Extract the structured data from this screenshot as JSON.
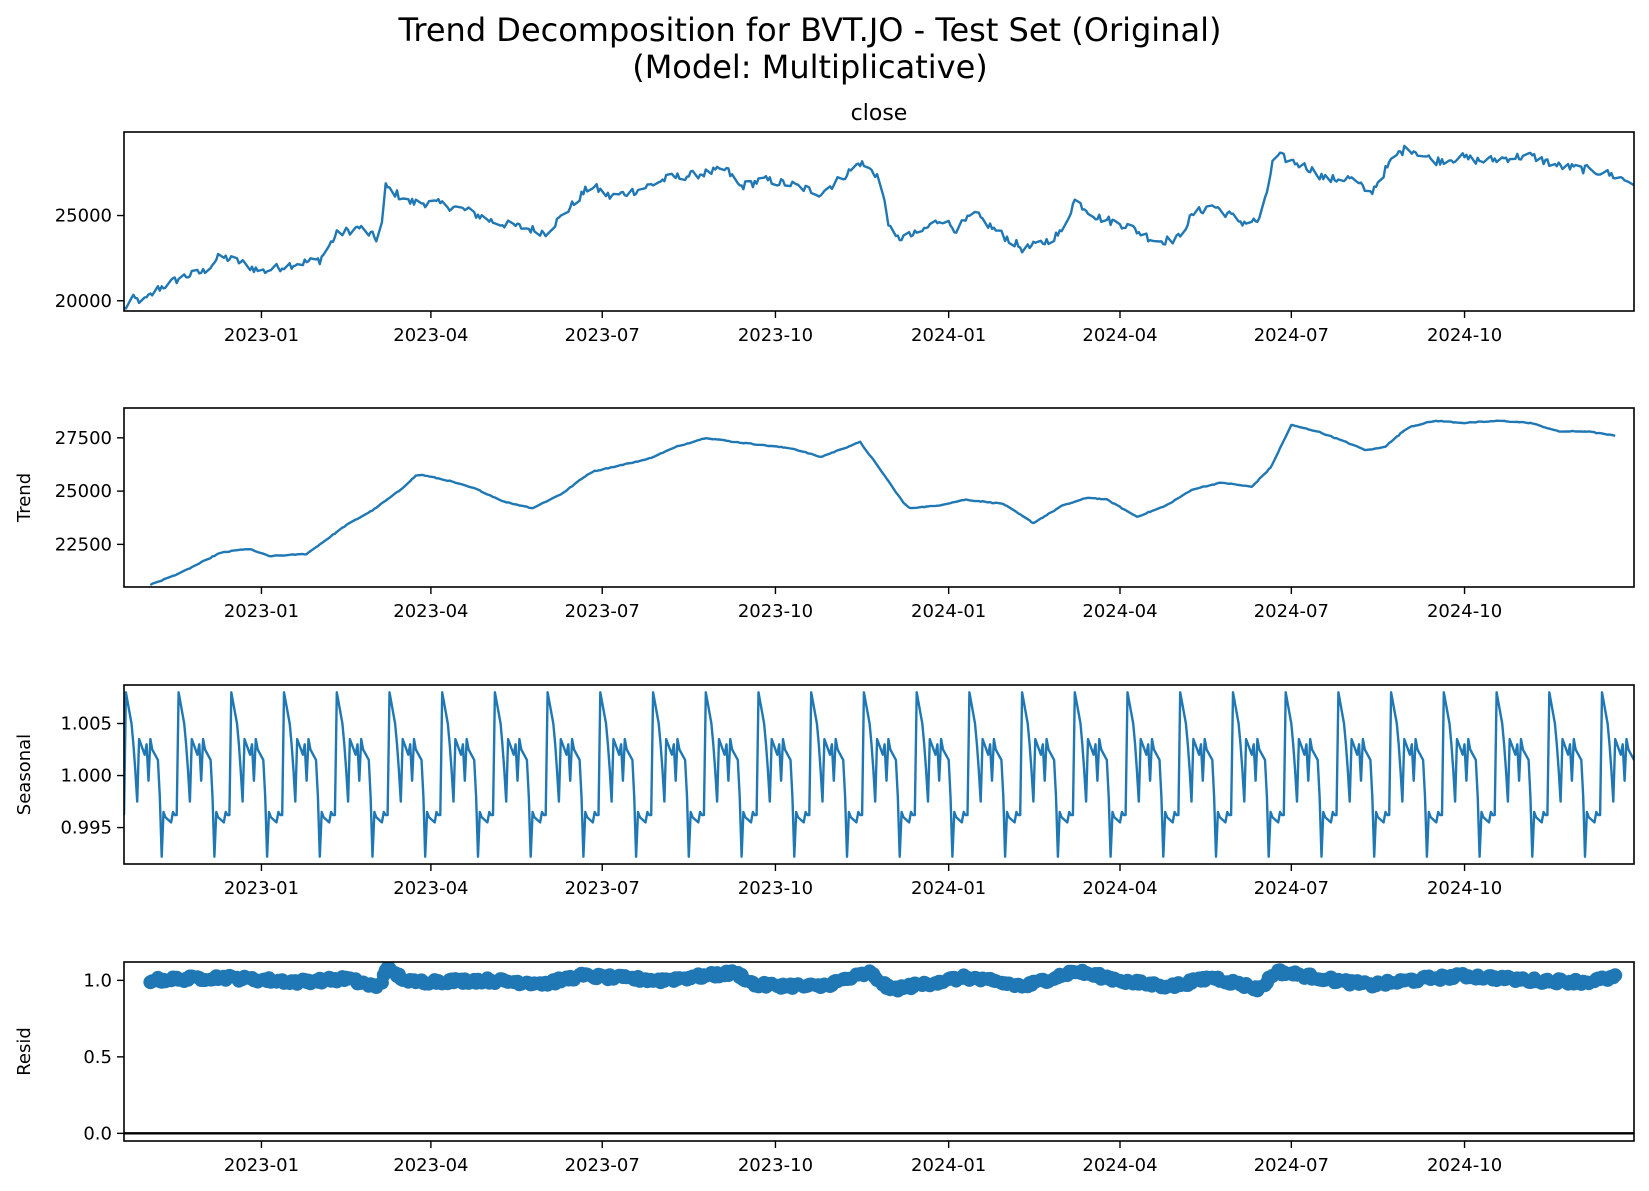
{
  "figure": {
    "title_line1": "Trend Decomposition for BVT.JO - Test Set (Original)",
    "title_line2": "(Model: Multiplicative)"
  },
  "colors": {
    "series": "#1f77b4",
    "axes": "#000000",
    "zero_line": "#000000"
  },
  "chart_data": [
    {
      "type": "line",
      "title": "close",
      "ylabel": "",
      "xlim": [
        "2022-10-20",
        "2024-12-30"
      ],
      "ylim": [
        19400,
        29900
      ],
      "yticks": [
        20000,
        25000
      ],
      "xticks": [
        "2023-01",
        "2023-04",
        "2023-07",
        "2023-10",
        "2024-01",
        "2024-04",
        "2024-07",
        "2024-10"
      ],
      "start_date": "2022-10-20",
      "end_date": "2024-12-30",
      "keypoints": [
        [
          "2022-10-20",
          19500
        ],
        [
          "2022-10-24",
          20100
        ],
        [
          "2022-10-31",
          20000
        ],
        [
          "2022-11-07",
          20700
        ],
        [
          "2022-11-20",
          21400
        ],
        [
          "2022-12-01",
          21700
        ],
        [
          "2022-12-10",
          22600
        ],
        [
          "2022-12-20",
          22300
        ],
        [
          "2023-01-01",
          21700
        ],
        [
          "2023-01-15",
          22100
        ],
        [
          "2023-02-01",
          22400
        ],
        [
          "2023-02-10",
          23900
        ],
        [
          "2023-02-22",
          24300
        ],
        [
          "2023-03-01",
          23800
        ],
        [
          "2023-03-05",
          23500
        ],
        [
          "2023-03-08",
          26700
        ],
        [
          "2023-03-20",
          25800
        ],
        [
          "2023-04-05",
          25700
        ],
        [
          "2023-04-20",
          25300
        ],
        [
          "2023-05-05",
          24600
        ],
        [
          "2023-05-20",
          24300
        ],
        [
          "2023-06-01",
          24000
        ],
        [
          "2023-06-10",
          25000
        ],
        [
          "2023-06-25",
          26800
        ],
        [
          "2023-07-05",
          26100
        ],
        [
          "2023-07-20",
          26500
        ],
        [
          "2023-08-05",
          27200
        ],
        [
          "2023-08-20",
          27400
        ],
        [
          "2023-09-05",
          27700
        ],
        [
          "2023-09-12",
          26700
        ],
        [
          "2023-09-25",
          27100
        ],
        [
          "2023-10-10",
          26800
        ],
        [
          "2023-10-25",
          26300
        ],
        [
          "2023-11-05",
          27200
        ],
        [
          "2023-11-15",
          28100
        ],
        [
          "2023-11-25",
          27300
        ],
        [
          "2023-12-02",
          23600
        ],
        [
          "2023-12-15",
          23900
        ],
        [
          "2023-12-28",
          24800
        ],
        [
          "2024-01-05",
          24200
        ],
        [
          "2024-01-15",
          25100
        ],
        [
          "2024-01-25",
          24200
        ],
        [
          "2024-02-10",
          23000
        ],
        [
          "2024-02-22",
          23500
        ],
        [
          "2024-03-01",
          24000
        ],
        [
          "2024-03-08",
          25900
        ],
        [
          "2024-03-20",
          24900
        ],
        [
          "2024-04-05",
          24400
        ],
        [
          "2024-04-20",
          23500
        ],
        [
          "2024-05-01",
          23600
        ],
        [
          "2024-05-10",
          25100
        ],
        [
          "2024-05-20",
          25600
        ],
        [
          "2024-06-05",
          24600
        ],
        [
          "2024-06-15",
          24700
        ],
        [
          "2024-06-22",
          28600
        ],
        [
          "2024-07-10",
          27800
        ],
        [
          "2024-07-20",
          27100
        ],
        [
          "2024-08-01",
          27200
        ],
        [
          "2024-08-12",
          26300
        ],
        [
          "2024-08-25",
          28500
        ],
        [
          "2024-09-01",
          29000
        ],
        [
          "2024-09-15",
          28200
        ],
        [
          "2024-09-30",
          28400
        ],
        [
          "2024-10-10",
          28200
        ],
        [
          "2024-10-25",
          28400
        ],
        [
          "2024-11-05",
          28500
        ],
        [
          "2024-11-20",
          27900
        ],
        [
          "2024-12-05",
          27700
        ],
        [
          "2024-12-15",
          27500
        ],
        [
          "2024-12-30",
          26900
        ]
      ]
    },
    {
      "type": "line",
      "title": "",
      "ylabel": "Trend",
      "xlim": [
        "2022-10-20",
        "2024-12-30"
      ],
      "ylim": [
        20500,
        28900
      ],
      "yticks": [
        22500,
        25000,
        27500
      ],
      "xticks": [
        "2023-01",
        "2023-04",
        "2023-07",
        "2023-10",
        "2024-01",
        "2024-04",
        "2024-07",
        "2024-10"
      ],
      "keypoints": [
        [
          "2022-11-03",
          20600
        ],
        [
          "2022-11-20",
          21200
        ],
        [
          "2022-12-10",
          22100
        ],
        [
          "2022-12-25",
          22300
        ],
        [
          "2023-01-05",
          21950
        ],
        [
          "2023-01-25",
          22050
        ],
        [
          "2023-02-15",
          23400
        ],
        [
          "2023-03-01",
          24100
        ],
        [
          "2023-03-15",
          25000
        ],
        [
          "2023-03-25",
          25800
        ],
        [
          "2023-04-10",
          25500
        ],
        [
          "2023-04-25",
          25100
        ],
        [
          "2023-05-10",
          24500
        ],
        [
          "2023-05-25",
          24200
        ],
        [
          "2023-06-10",
          24900
        ],
        [
          "2023-06-25",
          25900
        ],
        [
          "2023-07-10",
          26200
        ],
        [
          "2023-07-25",
          26500
        ],
        [
          "2023-08-10",
          27100
        ],
        [
          "2023-08-25",
          27500
        ],
        [
          "2023-09-10",
          27300
        ],
        [
          "2023-09-25",
          27150
        ],
        [
          "2023-10-10",
          27000
        ],
        [
          "2023-10-25",
          26600
        ],
        [
          "2023-11-15",
          27300
        ],
        [
          "2023-11-25",
          26100
        ],
        [
          "2023-12-10",
          24200
        ],
        [
          "2023-12-25",
          24300
        ],
        [
          "2024-01-10",
          24600
        ],
        [
          "2024-01-30",
          24400
        ],
        [
          "2024-02-15",
          23500
        ],
        [
          "2024-03-01",
          24300
        ],
        [
          "2024-03-15",
          24700
        ],
        [
          "2024-03-25",
          24600
        ],
        [
          "2024-04-10",
          23800
        ],
        [
          "2024-04-25",
          24300
        ],
        [
          "2024-05-10",
          25100
        ],
        [
          "2024-05-25",
          25400
        ],
        [
          "2024-06-10",
          25200
        ],
        [
          "2024-06-20",
          26100
        ],
        [
          "2024-07-01",
          28100
        ],
        [
          "2024-07-15",
          27800
        ],
        [
          "2024-07-30",
          27300
        ],
        [
          "2024-08-10",
          26900
        ],
        [
          "2024-08-20",
          27100
        ],
        [
          "2024-09-01",
          28000
        ],
        [
          "2024-09-15",
          28300
        ],
        [
          "2024-10-01",
          28200
        ],
        [
          "2024-10-20",
          28300
        ],
        [
          "2024-11-05",
          28200
        ],
        [
          "2024-11-20",
          27800
        ],
        [
          "2024-12-05",
          27800
        ],
        [
          "2024-12-20",
          27600
        ]
      ]
    },
    {
      "type": "line",
      "title": "",
      "ylabel": "Seasonal",
      "xlim": [
        "2022-10-20",
        "2024-12-30"
      ],
      "ylim": [
        0.9915,
        1.0087
      ],
      "yticks": [
        0.995,
        1.0,
        1.005
      ],
      "ytick_labels": [
        "0.995",
        "1.000",
        "1.005"
      ],
      "xticks": [
        "2023-01",
        "2023-04",
        "2023-07",
        "2023-10",
        "2024-01",
        "2024-04",
        "2024-07",
        "2024-10"
      ],
      "period_days": 29,
      "cycle_pattern": [
        0.9962,
        1.008,
        1.005,
        1.003,
        1.0005,
        0.9975,
        1.0035,
        1.002,
        1.003,
        0.9995,
        1.0035,
        1.0025,
        1.0015,
        0.998,
        0.9922,
        0.9965,
        0.996,
        0.9955,
        0.9965,
        0.9962
      ]
    },
    {
      "type": "scatter",
      "title": "",
      "ylabel": "Resid",
      "xlim": [
        "2022-10-20",
        "2024-12-30"
      ],
      "ylim": [
        -0.05,
        1.12
      ],
      "yticks": [
        0.0,
        0.5,
        1.0
      ],
      "ytick_labels": [
        "0.0",
        "0.5",
        "1.0"
      ],
      "xticks": [
        "2023-01",
        "2023-04",
        "2023-07",
        "2023-10",
        "2024-01",
        "2024-04",
        "2024-07",
        "2024-10"
      ],
      "zero_line": 0.0,
      "keypoints": [
        [
          "2022-11-03",
          1.0
        ],
        [
          "2022-12-10",
          1.02
        ],
        [
          "2023-01-20",
          0.99
        ],
        [
          "2023-02-15",
          1.01
        ],
        [
          "2023-03-05",
          0.95
        ],
        [
          "2023-03-08",
          1.08
        ],
        [
          "2023-03-20",
          0.99
        ],
        [
          "2023-04-30",
          1.0
        ],
        [
          "2023-06-01",
          0.98
        ],
        [
          "2023-06-20",
          1.03
        ],
        [
          "2023-08-01",
          1.0
        ],
        [
          "2023-09-10",
          1.05
        ],
        [
          "2023-09-20",
          0.97
        ],
        [
          "2023-10-25",
          0.96
        ],
        [
          "2023-11-20",
          1.05
        ],
        [
          "2023-12-01",
          0.94
        ],
        [
          "2024-01-10",
          1.02
        ],
        [
          "2024-02-10",
          0.96
        ],
        [
          "2024-03-08",
          1.06
        ],
        [
          "2024-04-05",
          0.99
        ],
        [
          "2024-04-28",
          0.96
        ],
        [
          "2024-05-20",
          1.02
        ],
        [
          "2024-06-15",
          0.94
        ],
        [
          "2024-06-22",
          1.06
        ],
        [
          "2024-07-30",
          0.99
        ],
        [
          "2024-08-12",
          0.97
        ],
        [
          "2024-09-10",
          1.01
        ],
        [
          "2024-10-01",
          1.03
        ],
        [
          "2024-11-05",
          1.0
        ],
        [
          "2024-12-05",
          0.99
        ],
        [
          "2024-12-20",
          1.02
        ]
      ]
    }
  ]
}
